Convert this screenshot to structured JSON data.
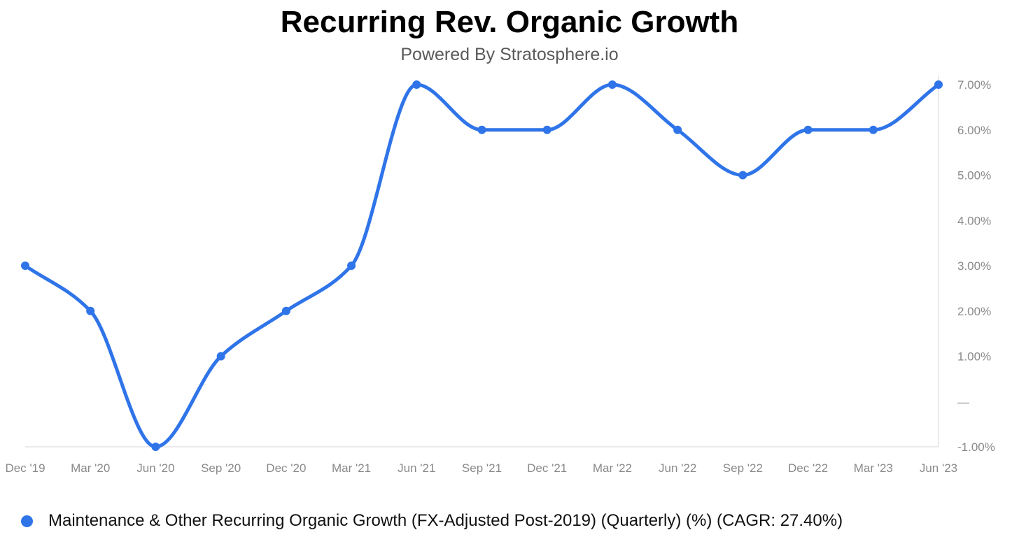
{
  "chart_data": {
    "type": "line",
    "title": "Recurring Rev. Organic Growth",
    "subtitle": "Powered By Stratosphere.io",
    "categories": [
      "Dec '19",
      "Mar '20",
      "Jun '20",
      "Sep '20",
      "Dec '20",
      "Mar '21",
      "Jun '21",
      "Sep '21",
      "Dec '21",
      "Mar '22",
      "Jun '22",
      "Sep '22",
      "Dec '22",
      "Mar '23",
      "Jun '23"
    ],
    "series": [
      {
        "name": "Maintenance & Other Recurring Organic Growth (FX-Adjusted Post-2019) (Quarterly) (%) (CAGR: 27.40%)",
        "color": "#2f74e8",
        "values": [
          3,
          2,
          -1,
          1,
          2,
          3,
          7,
          6,
          6,
          7,
          6,
          5,
          6,
          6,
          7
        ]
      }
    ],
    "y_ticks": [
      -1,
      0,
      1,
      2,
      3,
      4,
      5,
      6,
      7
    ],
    "y_tick_labels": [
      "-1.00%",
      "—",
      "1.00%",
      "2.00%",
      "3.00%",
      "4.00%",
      "5.00%",
      "6.00%",
      "7.00%"
    ],
    "ylim": [
      -1,
      7
    ],
    "y_axis_position": "right",
    "grid": false,
    "xlabel": "",
    "ylabel": "",
    "legend_position": "bottom-left"
  }
}
